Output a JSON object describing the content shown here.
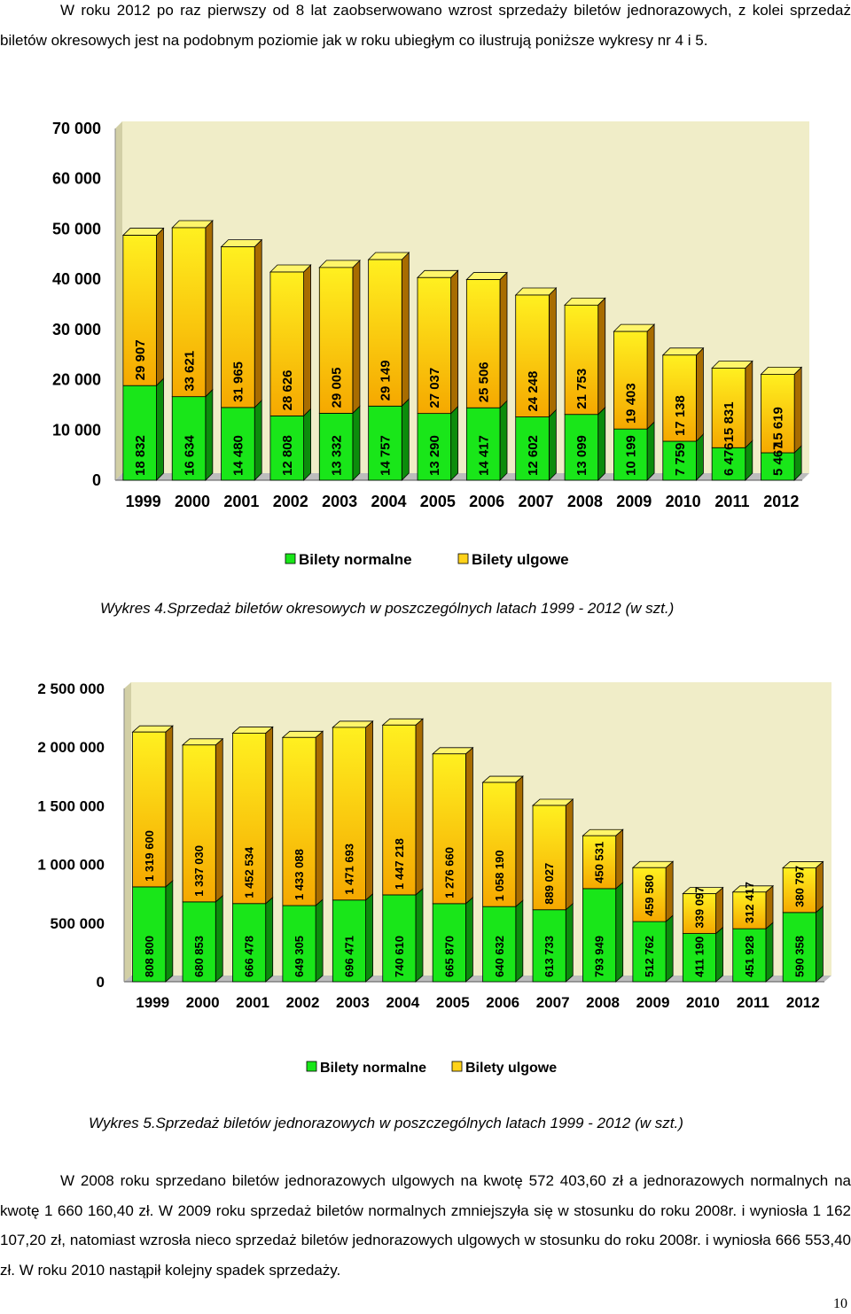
{
  "intro": "W roku 2012 po raz pierwszy od 8 lat zaobserwowano wzrost sprzedaży biletów jednorazowych, z kolei sprzedaż biletów okresowych jest na podobnym poziomie jak w roku ubiegłym co ilustrują poniższe wykresy nr 4 i 5.",
  "caption1": "Wykres 4.Sprzedaż biletów okresowych w poszczególnych latach 1999 - 2012 (w szt.)",
  "caption2": "Wykres 5.Sprzedaż biletów jednorazowych w poszczególnych latach 1999 - 2012 (w szt.)",
  "outro": "W 2008 roku sprzedano biletów jednorazowych ulgowych na kwotę 572 403,60 zł a jednorazowych normalnych na kwotę 1 660 160,40 zł. W 2009 roku sprzedaż biletów normalnych zmniejszyła się w stosunku do roku 2008r. i wyniosła 1 162 107,20 zł, natomiast wzrosła nieco sprzedaż biletów jednorazowych ulgowych w stosunku do roku 2008r. i wyniosła 666 553,40 zł. W roku 2010 nastąpił kolejny spadek sprzedaży.",
  "page_number": "10",
  "colors": {
    "normal": "#19e619",
    "normal_dark": "#0c8c0c",
    "reduced_top": "#fff020",
    "reduced_bottom": "#f5a800",
    "reduced_dark": "#a86c00",
    "wall": "#f0edc8",
    "wall_side": "#d2cfa6"
  },
  "chart_data": [
    {
      "type": "bar",
      "stacked": true,
      "categories": [
        "1999",
        "2000",
        "2001",
        "2002",
        "2003",
        "2004",
        "2005",
        "2006",
        "2007",
        "2008",
        "2009",
        "2010",
        "2011",
        "2012"
      ],
      "series": [
        {
          "name": "Bilety normalne",
          "values": [
            18832,
            16634,
            14480,
            12808,
            13332,
            14757,
            13290,
            14417,
            12602,
            13099,
            10199,
            7759,
            6476,
            5467
          ],
          "labels": [
            "18 832",
            "16 634",
            "14 480",
            "12 808",
            "13 332",
            "14 757",
            "13 290",
            "14 417",
            "12 602",
            "13 099",
            "10 199",
            "7 759",
            "6 476",
            "5 467"
          ]
        },
        {
          "name": "Bilety ulgowe",
          "values": [
            29907,
            33621,
            31965,
            28626,
            29005,
            29149,
            27037,
            25506,
            24248,
            21753,
            19403,
            17138,
            15831,
            15619
          ],
          "labels": [
            "29 907",
            "33 621",
            "31 965",
            "28 626",
            "29 005",
            "29 149",
            "27 037",
            "25 506",
            "24 248",
            "21 753",
            "19 403",
            "17 138",
            "15 831",
            "15 619"
          ]
        }
      ],
      "ylim": [
        0,
        70000
      ],
      "yticks": [
        "0",
        "10 000",
        "20 000",
        "30 000",
        "40 000",
        "50 000",
        "60 000",
        "70 000"
      ],
      "legend": "bottom"
    },
    {
      "type": "bar",
      "stacked": true,
      "categories": [
        "1999",
        "2000",
        "2001",
        "2002",
        "2003",
        "2004",
        "2005",
        "2006",
        "2007",
        "2008",
        "2009",
        "2010",
        "2011",
        "2012"
      ],
      "series": [
        {
          "name": "Bilety normalne",
          "values": [
            808800,
            680853,
            666478,
            649305,
            696471,
            740610,
            665870,
            640632,
            613733,
            793949,
            512762,
            411190,
            451928,
            590358
          ],
          "labels": [
            "808 800",
            "680 853",
            "666 478",
            "649 305",
            "696 471",
            "740 610",
            "665 870",
            "640 632",
            "613 733",
            "793 949",
            "512 762",
            "411 190",
            "451 928",
            "590 358"
          ]
        },
        {
          "name": "Bilety ulgowe",
          "values": [
            1319600,
            1337030,
            1452534,
            1433088,
            1471693,
            1447218,
            1276660,
            1058190,
            889027,
            450531,
            459580,
            339097,
            312417,
            380797
          ],
          "labels": [
            "1 319 600",
            "1 337 030",
            "1 452 534",
            "1 433 088",
            "1 471 693",
            "1 447 218",
            "1 276 660",
            "1 058 190",
            "889 027",
            "450 531",
            "459 580",
            "339 097",
            "312 417",
            "380 797"
          ]
        }
      ],
      "ylim": [
        0,
        2500000
      ],
      "yticks": [
        "0",
        "500 000",
        "1 000 000",
        "1 500 000",
        "2 000 000",
        "2 500 000"
      ],
      "legend": "bottom"
    }
  ]
}
